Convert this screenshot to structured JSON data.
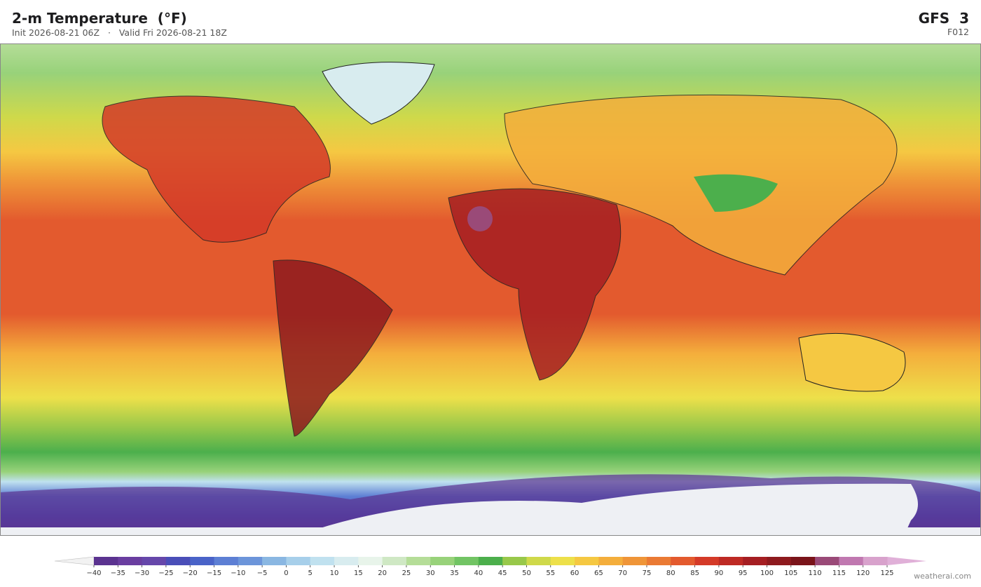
{
  "header": {
    "title": "2-m Temperature  (°F)",
    "subtitle": "Init 2026-08-21 06Z   ·   Valid Fri 2026-08-21 18Z",
    "model": "GFS  3",
    "forecast_hour": "F012"
  },
  "colorbar": {
    "ticks": [
      {
        "value": -40,
        "label": "−40"
      },
      {
        "value": -35,
        "label": "−35"
      },
      {
        "value": -30,
        "label": "−30"
      },
      {
        "value": -25,
        "label": "−25"
      },
      {
        "value": -20,
        "label": "−20"
      },
      {
        "value": -15,
        "label": "−15"
      },
      {
        "value": -10,
        "label": "−10"
      },
      {
        "value": -5,
        "label": "−5"
      },
      0,
      5,
      10,
      15,
      20,
      25,
      30,
      35,
      40,
      45,
      50,
      55,
      60,
      65,
      70,
      75,
      80,
      85,
      90,
      95,
      100,
      105,
      110,
      115,
      120,
      125
    ],
    "colors": [
      "#5b3390",
      "#6a3ea0",
      "#6647aa",
      "#4a4eb8",
      "#4a63c8",
      "#5d7fd4",
      "#6c95da",
      "#8ab7e2",
      "#a7cfea",
      "#c0e1ef",
      "#d8ecef",
      "#e8f4ea",
      "#cfe8c4",
      "#b5dd98",
      "#98d27a",
      "#72c464",
      "#4caf4c",
      "#98c84a",
      "#cfd94a",
      "#ede04a",
      "#f5c842",
      "#f4ae3c",
      "#ef9538",
      "#ea7a34",
      "#e35a2e",
      "#d43a28",
      "#be2a24",
      "#a51e22",
      "#8e1a1e",
      "#7a141a",
      "#9a4a78",
      "#c078b0",
      "#d8a2cc"
    ],
    "under_color": "#f2f2f2",
    "over_color": "#e0b0d8"
  },
  "footer": {
    "watermark": "weatherai.com"
  }
}
